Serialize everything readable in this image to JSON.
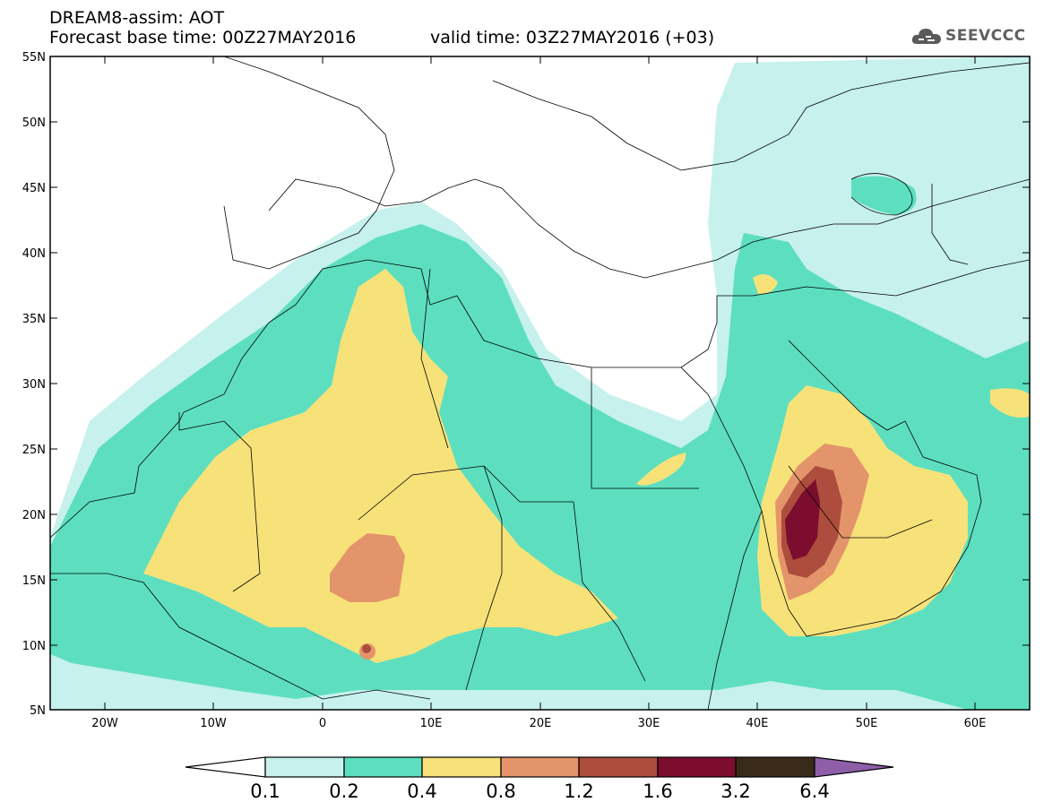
{
  "header": {
    "title": "DREAM8-assim: AOT",
    "base_time": "Forecast base time: 00Z27MAY2016",
    "valid_time": "valid time: 03Z27MAY2016 (+03)",
    "logo_text": "SEEVCCC"
  },
  "map": {
    "lat_labels": [
      "55N",
      "50N",
      "45N",
      "40N",
      "35N",
      "30N",
      "25N",
      "20N",
      "15N",
      "10N",
      "5N"
    ],
    "lon_labels": [
      "20W",
      "10W",
      "0",
      "10E",
      "20E",
      "30E",
      "40E",
      "50E",
      "60E"
    ],
    "lat_range": [
      5,
      55
    ],
    "lon_range": [
      -25,
      65
    ],
    "colors": {
      "c01": "#c6f1ec",
      "c02": "#5ddfbf",
      "c04": "#f7e27a",
      "c08": "#e4946a",
      "c12": "#ad4d3d",
      "c16": "#7c0d2f",
      "c32": "#3a2a1a",
      "c64": "#8e5ea8"
    }
  },
  "colorbar": {
    "labels": [
      "0.1",
      "0.2",
      "0.4",
      "0.8",
      "1.2",
      "1.6",
      "3.2",
      "6.4"
    ]
  }
}
